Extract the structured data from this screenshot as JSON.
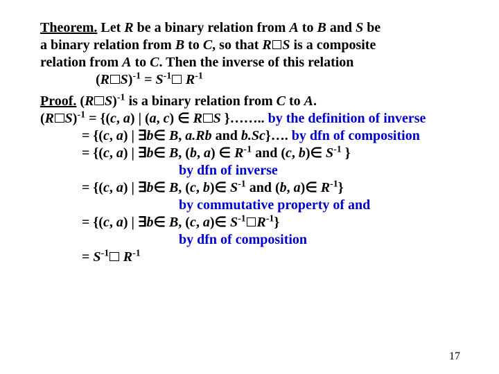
{
  "theorem": {
    "label": "Theorem.",
    "line1_a": " Let ",
    "line1_R": "R",
    "line1_b": " be a binary relation from  ",
    "line1_A": "A",
    "line1_c": " to ",
    "line1_B": "B",
    "line1_d": " and ",
    "line1_S": "S",
    "line1_e": " be",
    "line2_a": "a binary relation from ",
    "line2_B": "B",
    "line2_b": " to ",
    "line2_C": "C",
    "line2_c": ", so that ",
    "line2_R": "R",
    "line2_S": "S",
    "line2_d": "  is  a composite",
    "line3_a": "relation from ",
    "line3_A": "A",
    "line3_b": " to ",
    "line3_C": "C",
    "line3_c": ". Then the inverse of this relation",
    "line4_a": "(",
    "line4_R": "R",
    "line4_S": "S",
    "line4_b": ")",
    "sup_neg1": "-1",
    "line4_eq": " = ",
    "line4_S2": "S",
    "line4_R2": "R"
  },
  "proof": {
    "label": "Proof.",
    "p1_a": " (",
    "p1_R": "R",
    "p1_S": "S",
    "p1_b": ")",
    "p1_c": " is a binary relation from ",
    "p1_C": "C",
    "p1_d": " to ",
    "p1_A": "A",
    "p1_e": ".",
    "p2_a": "(",
    "p2_R": "R",
    "p2_S": "S",
    "p2_b": ")",
    "p2_c": " = {(",
    "p2_c1": "c",
    "p2_cm": ", ",
    "p2_a1": "a",
    "p2_d": ") | (",
    "p2_a2": "a",
    "p2_c2": "c",
    "p2_e": ") ∈ ",
    "p2_R2": "R",
    "p2_S2": "S",
    "p2_f": " }…….. ",
    "ann1": "by the definition of inverse",
    "p3_a": "= {(",
    "p3_c": "c",
    "p3_a1": "a",
    "p3_b": ") | ∃",
    "p3_bv": "b",
    "p3_in": "∈ ",
    "p3_B": "B",
    "p3_d": ",  ",
    "p3_aRb": "a.Rb",
    "p3_and": " and ",
    "p3_bSc": "b.Sc",
    "p3_e": "}…. ",
    "ann2": "by dfn of composition",
    "p4_a": "= {(",
    "p4_d": ",  (",
    "p4_bv2": "b",
    "p4_av": "a",
    "p4_e": ") ∈ ",
    "p4_R": "R",
    "p4_and": " and (",
    "p4_cv2": "c",
    "p4_bv3": "b",
    "p4_f": ")∈ ",
    "p4_S": "S",
    "p4_g": " }",
    "ann3": "by dfn of inverse",
    "p5_a": "= {(",
    "p5_d": ", (",
    "p5_e": ")∈ ",
    "p5_S": "S",
    "p5_and": " and (",
    "p5_R": "R",
    "p5_g": "}",
    "ann4": "by commutative property of and",
    "p6_a": "= {(",
    "p6_d": ",  (",
    "p6_e": ")∈ ",
    "p6_S": "S",
    "p6_R": "R",
    "p6_g": "}",
    "ann5": "by dfn of composition",
    "p7_a": "= ",
    "p7_S": "S",
    "p7_R": "R"
  },
  "pagenum": "17",
  "colors": {
    "annotation": "#0000cc",
    "text": "#000000",
    "bg": "#ffffff"
  }
}
